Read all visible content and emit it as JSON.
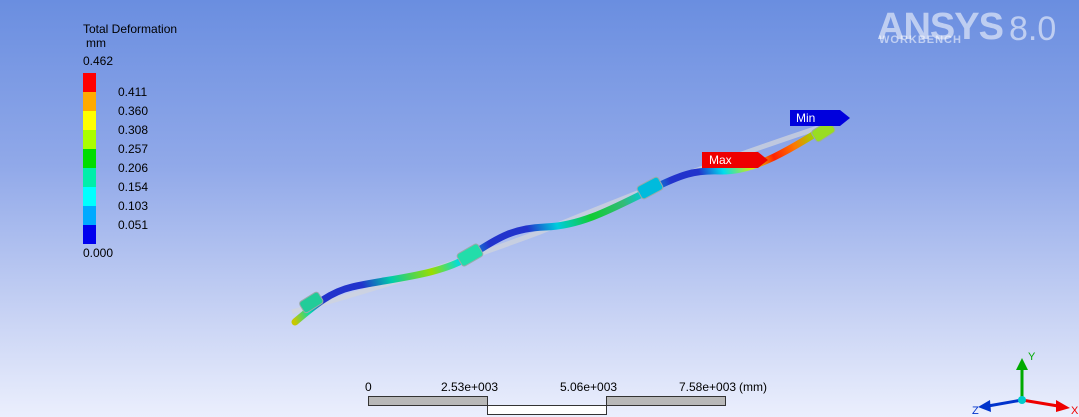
{
  "legend": {
    "title": "Total Deformation",
    "unit": "mm",
    "max_value": "0.462",
    "min_value": "0.000",
    "levels": [
      {
        "label": "0.411",
        "color": "#ff0000"
      },
      {
        "label": "0.360",
        "color": "#ffaa00"
      },
      {
        "label": "0.308",
        "color": "#ffff00"
      },
      {
        "label": "0.257",
        "color": "#aaff00"
      },
      {
        "label": "0.206",
        "color": "#00dd00"
      },
      {
        "label": "0.154",
        "color": "#00eeaa"
      },
      {
        "label": "0.103",
        "color": "#00ffff"
      },
      {
        "label": "0.051",
        "color": "#00aaff"
      },
      {
        "label": "",
        "color": "#0000ee"
      }
    ]
  },
  "logo": {
    "main": "ANSYS",
    "version": "8.0",
    "sub": "WORKBENCH"
  },
  "probes": {
    "max_label": "Max",
    "max_color": "#ee0000",
    "min_label": "Min",
    "min_color": "#0000dd"
  },
  "scale": {
    "ticks": [
      "0",
      "2.53e+003",
      "5.06e+003",
      "7.58e+003"
    ],
    "unit": "(mm)"
  },
  "triad": {
    "y_label": "Y",
    "z_label": "Z",
    "x_label": "X",
    "y_color": "#00aa00",
    "x_color": "#ee0000",
    "z_color": "#0033cc"
  }
}
